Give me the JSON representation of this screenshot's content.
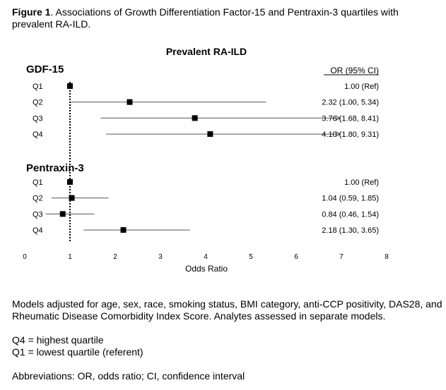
{
  "caption": {
    "label": "Figure 1",
    "text": ". Associations of Growth Differentiation Factor-15 and Pentraxin-3 quartiles with prevalent RA-ILD."
  },
  "chart_data": {
    "type": "forest",
    "title": "Prevalent RA-ILD",
    "xlabel": "Odds Ratio",
    "xlim": [
      0,
      8
    ],
    "xticks": [
      0,
      1,
      2,
      3,
      4,
      5,
      6,
      7,
      8
    ],
    "reference_line": 1,
    "or_header": "OR (95% CI)",
    "groups": [
      {
        "name": "GDF-15",
        "rows": [
          {
            "label": "Q1",
            "or": 1.0,
            "lo": 1.0,
            "hi": 1.0,
            "text": "1.00 (Ref)",
            "arrow": false
          },
          {
            "label": "Q2",
            "or": 2.32,
            "lo": 1.0,
            "hi": 5.34,
            "text": "2.32 (1.00, 5.34)",
            "arrow": false
          },
          {
            "label": "Q3",
            "or": 3.76,
            "lo": 1.68,
            "hi": 8.41,
            "text": "3.76 (1.68, 8.41)",
            "arrow": true
          },
          {
            "label": "Q4",
            "or": 4.1,
            "lo": 1.8,
            "hi": 9.31,
            "text": "4.10 (1.80, 9.31)",
            "arrow": true
          }
        ]
      },
      {
        "name": "Pentraxin-3",
        "rows": [
          {
            "label": "Q1",
            "or": 1.0,
            "lo": 1.0,
            "hi": 1.0,
            "text": "1.00 (Ref)",
            "arrow": false
          },
          {
            "label": "Q2",
            "or": 1.04,
            "lo": 0.59,
            "hi": 1.85,
            "text": "1.04 (0.59, 1.85)",
            "arrow": false
          },
          {
            "label": "Q3",
            "or": 0.84,
            "lo": 0.46,
            "hi": 1.54,
            "text": "0.84 (0.46, 1.54)",
            "arrow": false
          },
          {
            "label": "Q4",
            "or": 2.18,
            "lo": 1.3,
            "hi": 3.65,
            "text": "2.18 (1.30, 3.65)",
            "arrow": false
          }
        ]
      }
    ]
  },
  "notes": {
    "models": "Models adjusted for age, sex, race, smoking status, BMI category, anti-CCP positivity, DAS28, and Rheumatic Disease Comorbidity Index Score. Analytes assessed in separate models.",
    "q4": "Q4 = highest quartile",
    "q1": "Q1 = lowest quartile (referent)",
    "abbrev": "Abbreviations: OR, odds ratio; CI, confidence interval"
  }
}
